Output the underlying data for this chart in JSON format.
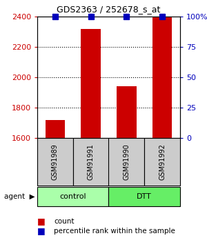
{
  "title": "GDS2363 / 252678_s_at",
  "categories": [
    "GSM91989",
    "GSM91991",
    "GSM91990",
    "GSM91992"
  ],
  "red_values": [
    1720,
    2320,
    1940,
    2400
  ],
  "blue_values": [
    100,
    100,
    100,
    100
  ],
  "ylim_left": [
    1600,
    2400
  ],
  "ylim_right": [
    0,
    100
  ],
  "yticks_left": [
    1600,
    1800,
    2000,
    2200,
    2400
  ],
  "yticks_right": [
    0,
    25,
    50,
    75,
    100
  ],
  "yticklabels_right": [
    "0",
    "25",
    "50",
    "75",
    "100%"
  ],
  "left_color": "#cc0000",
  "right_color": "#0000bb",
  "bar_color": "#cc0000",
  "dot_color": "#0000bb",
  "legend_count_color": "#cc0000",
  "legend_pct_color": "#0000bb",
  "grid_color": "#000000",
  "sample_box_color": "#cccccc",
  "group_colors": [
    "#aaffaa",
    "#66ee66"
  ],
  "group_labels": [
    "control",
    "DTT"
  ],
  "bar_width": 0.55,
  "dot_size": 6,
  "fig_width": 3.0,
  "fig_height": 3.45,
  "dpi": 100
}
